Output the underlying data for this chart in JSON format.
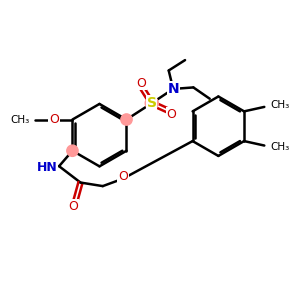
{
  "bg_color": "#ffffff",
  "bond_color": "#000000",
  "nitrogen_color": "#0000cc",
  "oxygen_color": "#cc0000",
  "sulfur_color": "#cccc00",
  "highlight_color": "#ff9999",
  "line_width": 1.8,
  "figsize": [
    3.0,
    3.0
  ],
  "dpi": 100,
  "xlim": [
    0,
    10
  ],
  "ylim": [
    0,
    10
  ]
}
